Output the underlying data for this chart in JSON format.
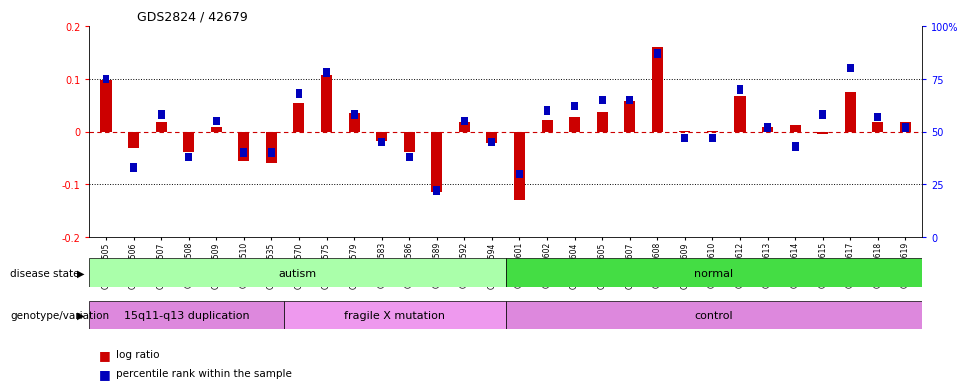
{
  "title": "GDS2824 / 42679",
  "samples": [
    "GSM176505",
    "GSM176506",
    "GSM176507",
    "GSM176508",
    "GSM176509",
    "GSM176510",
    "GSM176535",
    "GSM176570",
    "GSM176575",
    "GSM176579",
    "GSM176583",
    "GSM176586",
    "GSM176589",
    "GSM176592",
    "GSM176594",
    "GSM176601",
    "GSM176602",
    "GSM176604",
    "GSM176605",
    "GSM176607",
    "GSM176608",
    "GSM176609",
    "GSM176610",
    "GSM176612",
    "GSM176613",
    "GSM176614",
    "GSM176615",
    "GSM176617",
    "GSM176618",
    "GSM176619"
  ],
  "log_ratio": [
    0.098,
    -0.032,
    0.018,
    -0.038,
    0.008,
    -0.055,
    -0.06,
    0.055,
    0.108,
    0.035,
    -0.018,
    -0.038,
    -0.115,
    0.018,
    -0.022,
    -0.13,
    0.022,
    0.028,
    0.038,
    0.058,
    0.16,
    0.002,
    0.002,
    0.068,
    0.008,
    0.012,
    -0.005,
    0.075,
    0.018,
    0.018
  ],
  "percentile_rank": [
    75,
    33,
    58,
    38,
    55,
    40,
    40,
    68,
    78,
    58,
    45,
    38,
    22,
    55,
    45,
    30,
    60,
    62,
    65,
    65,
    87,
    47,
    47,
    70,
    52,
    43,
    58,
    80,
    57,
    52
  ],
  "disease_state_groups": [
    {
      "label": "autism",
      "start": 0,
      "end": 14,
      "color": "#aaffaa"
    },
    {
      "label": "normal",
      "start": 15,
      "end": 29,
      "color": "#44dd44"
    }
  ],
  "genotype_groups": [
    {
      "label": "15q11-q13 duplication",
      "start": 0,
      "end": 6,
      "color": "#dd88dd"
    },
    {
      "label": "fragile X mutation",
      "start": 7,
      "end": 14,
      "color": "#ee99ee"
    },
    {
      "label": "control",
      "start": 15,
      "end": 29,
      "color": "#dd88dd"
    }
  ],
  "left_ylim": [
    -0.2,
    0.2
  ],
  "right_ylim": [
    0,
    100
  ],
  "bar_color_red": "#cc0000",
  "bar_color_blue": "#0000bb",
  "hline_color": "#cc0000",
  "grid_color": "#000000",
  "bg_color": "#ffffff",
  "plot_bg": "#ffffff",
  "left_yticks": [
    -0.2,
    -0.1,
    0.0,
    0.1,
    0.2
  ],
  "right_yticks": [
    0,
    25,
    50,
    75,
    100
  ],
  "left_tick_labels": [
    "-0.2",
    "-0.1",
    "0",
    "0.1",
    "0.2"
  ],
  "right_tick_labels": [
    "0",
    "25",
    "50",
    "75",
    "100%"
  ]
}
